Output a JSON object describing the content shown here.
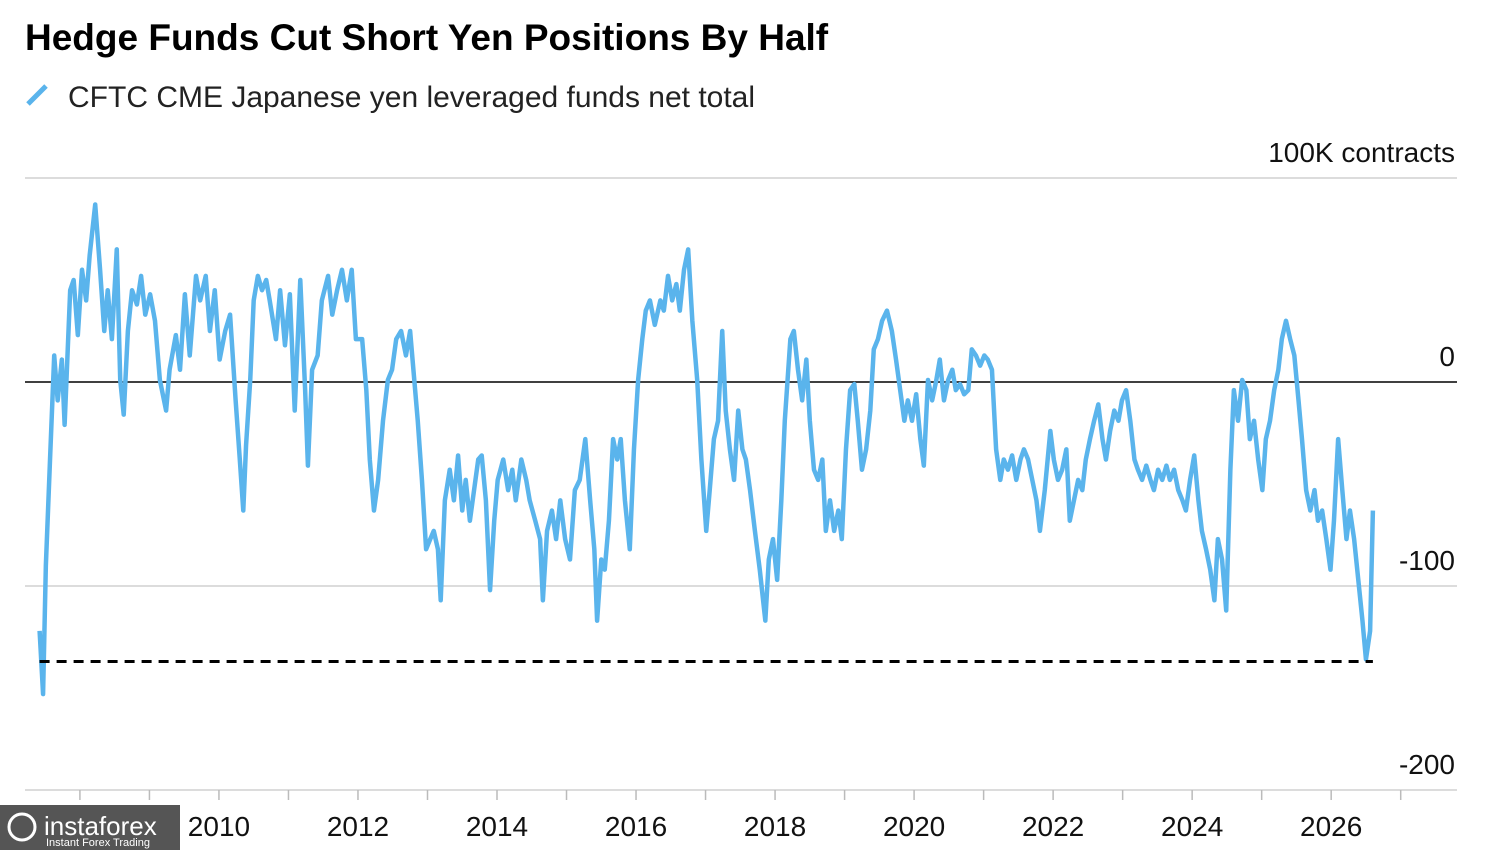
{
  "chart_data": {
    "type": "line",
    "title": "Hedge Funds Cut Short Yen Positions By Half",
    "x": [
      2007.42,
      2007.47,
      2007.51,
      2007.57,
      2007.63,
      2007.68,
      2007.74,
      2007.78,
      2007.86,
      2007.91,
      2007.97,
      2008.03,
      2008.09,
      2008.14,
      2008.22,
      2008.29,
      2008.35,
      2008.4,
      2008.46,
      2008.53,
      2008.58,
      2008.63,
      2008.69,
      2008.75,
      2008.82,
      2008.88,
      2008.94,
      2009.01,
      2009.08,
      2009.15,
      2009.24,
      2009.29,
      2009.38,
      2009.44,
      2009.51,
      2009.58,
      2009.67,
      2009.73,
      2009.81,
      2009.87,
      2009.94,
      2010.01,
      2010.09,
      2010.16,
      2010.24,
      2010.3,
      2010.35,
      2010.39,
      2010.45,
      2010.5,
      2010.56,
      2010.62,
      2010.68,
      2010.73,
      2010.82,
      2010.88,
      2010.95,
      2011.02,
      2011.09,
      2011.17,
      2011.24,
      2011.28,
      2011.34,
      2011.42,
      2011.48,
      2011.57,
      2011.63,
      2011.7,
      2011.77,
      2011.84,
      2011.91,
      2011.97,
      2012.06,
      2012.12,
      2012.17,
      2012.23,
      2012.29,
      2012.36,
      2012.43,
      2012.49,
      2012.55,
      2012.62,
      2012.69,
      2012.75,
      2012.81,
      2012.86,
      2012.92,
      2012.98,
      2013.04,
      2013.09,
      2013.15,
      2013.19,
      2013.25,
      2013.32,
      2013.38,
      2013.44,
      2013.5,
      2013.55,
      2013.61,
      2013.67,
      2013.73,
      2013.78,
      2013.84,
      2013.9,
      2013.96,
      2014.01,
      2014.09,
      2014.16,
      2014.22,
      2014.27,
      2014.35,
      2014.42,
      2014.47,
      2014.55,
      2014.62,
      2014.66,
      2014.72,
      2014.79,
      2014.85,
      2014.91,
      2014.98,
      2015.05,
      2015.12,
      2015.19,
      2015.27,
      2015.34,
      2015.4,
      2015.44,
      2015.5,
      2015.55,
      2015.61,
      2015.67,
      2015.73,
      2015.78,
      2015.84,
      2015.91,
      2015.97,
      2016.03,
      2016.09,
      2016.14,
      2016.2,
      2016.27,
      2016.35,
      2016.4,
      2016.46,
      2016.52,
      2016.58,
      2016.63,
      2016.69,
      2016.75,
      2016.81,
      2016.88,
      2016.94,
      2017.01,
      2017.06,
      2017.12,
      2017.18,
      2017.24,
      2017.29,
      2017.35,
      2017.41,
      2017.47,
      2017.53,
      2017.58,
      2017.64,
      2017.71,
      2017.78,
      2017.86,
      2017.91,
      2017.97,
      2018.03,
      2018.09,
      2018.14,
      2018.22,
      2018.27,
      2018.33,
      2018.39,
      2018.45,
      2018.5,
      2018.56,
      2018.62,
      2018.68,
      2018.73,
      2018.79,
      2018.85,
      2018.91,
      2018.96,
      2019.02,
      2019.08,
      2019.14,
      2019.19,
      2019.25,
      2019.31,
      2019.37,
      2019.42,
      2019.48,
      2019.54,
      2019.61,
      2019.68,
      2019.74,
      2019.8,
      2019.86,
      2019.91,
      2019.97,
      2020.03,
      2020.09,
      2020.14,
      2020.2,
      2020.26,
      2020.32,
      2020.37,
      2020.43,
      2020.49,
      2020.55,
      2020.6,
      2020.66,
      2020.72,
      2020.78,
      2020.83,
      2020.89,
      2020.95,
      2021.01,
      2021.06,
      2021.12,
      2021.18,
      2021.24,
      2021.29,
      2021.35,
      2021.41,
      2021.47,
      2021.53,
      2021.58,
      2021.64,
      2021.7,
      2021.76,
      2021.81,
      2021.88,
      2021.96,
      2022.01,
      2022.07,
      2022.13,
      2022.19,
      2022.24,
      2022.3,
      2022.36,
      2022.42,
      2022.47,
      2022.53,
      2022.59,
      2022.65,
      2022.71,
      2022.76,
      2022.82,
      2022.88,
      2022.94,
      2022.99,
      2023.05,
      2023.11,
      2023.17,
      2023.22,
      2023.28,
      2023.34,
      2023.4,
      2023.45,
      2023.51,
      2023.57,
      2023.63,
      2023.68,
      2023.74,
      2023.8,
      2023.86,
      2023.91,
      2023.97,
      2024.03,
      2024.09,
      2024.14,
      2024.2,
      2024.26,
      2024.32,
      2024.37,
      2024.43,
      2024.49,
      2024.55,
      2024.6,
      2024.66,
      2024.72,
      2024.78,
      2024.83,
      2024.89,
      2024.95,
      2025.01,
      2025.06,
      2025.12,
      2025.18,
      2025.24,
      2025.29,
      2025.35,
      2025.41,
      2025.47,
      2025.53,
      2025.58,
      2025.64,
      2025.7,
      2025.76,
      2025.81,
      2025.87,
      2025.93,
      2025.99,
      2026.04,
      2026.1,
      2026.16,
      2026.22,
      2026.27,
      2026.33,
      2026.39,
      2026.45,
      2026.5,
      2026.56,
      2026.6
    ],
    "series": [
      {
        "name": "CFTC CME Japanese yen leveraged funds net total",
        "color": "#5ab4ec",
        "values": [
          -122,
          -153,
          -90,
          -38,
          13,
          -9,
          11,
          -21,
          45,
          50,
          23,
          55,
          40,
          62,
          87,
          55,
          25,
          45,
          21,
          65,
          1,
          -16,
          25,
          45,
          38,
          52,
          33,
          43,
          30,
          1,
          -14,
          6,
          23,
          6,
          43,
          13,
          52,
          40,
          52,
          25,
          45,
          11,
          25,
          33,
          -9,
          -38,
          -63,
          -31,
          1,
          40,
          52,
          45,
          50,
          40,
          21,
          45,
          18,
          43,
          -14,
          50,
          -4,
          -41,
          6,
          13,
          40,
          52,
          33,
          45,
          55,
          40,
          55,
          21,
          21,
          -4,
          -38,
          -63,
          -48,
          -19,
          1,
          6,
          21,
          25,
          13,
          25,
          1,
          -19,
          -48,
          -82,
          -77,
          -73,
          -82,
          -107,
          -58,
          -43,
          -58,
          -36,
          -63,
          -48,
          -68,
          -53,
          -38,
          -36,
          -58,
          -102,
          -68,
          -48,
          -38,
          -53,
          -43,
          -58,
          -38,
          -48,
          -58,
          -68,
          -77,
          -107,
          -73,
          -63,
          -77,
          -58,
          -77,
          -87,
          -53,
          -48,
          -28,
          -58,
          -82,
          -117,
          -87,
          -92,
          -68,
          -28,
          -38,
          -28,
          -58,
          -82,
          -33,
          1,
          21,
          35,
          40,
          28,
          40,
          35,
          52,
          40,
          48,
          35,
          55,
          65,
          30,
          1,
          -38,
          -73,
          -53,
          -28,
          -19,
          25,
          -14,
          -33,
          -48,
          -14,
          -33,
          -38,
          -53,
          -73,
          -92,
          -117,
          -87,
          -77,
          -97,
          -58,
          -19,
          21,
          25,
          6,
          -9,
          11,
          -19,
          -43,
          -48,
          -38,
          -73,
          -58,
          -73,
          -63,
          -77,
          -33,
          -4,
          -1,
          -19,
          -43,
          -33,
          -14,
          16,
          21,
          30,
          35,
          25,
          11,
          -4,
          -19,
          -9,
          -19,
          -6,
          -28,
          -41,
          1,
          -9,
          1,
          11,
          -9,
          1,
          6,
          -4,
          -1,
          -6,
          -4,
          16,
          13,
          8,
          13,
          11,
          6,
          -33,
          -48,
          -38,
          -43,
          -36,
          -48,
          -38,
          -33,
          -38,
          -48,
          -58,
          -73,
          -53,
          -24,
          -38,
          -48,
          -43,
          -33,
          -68,
          -58,
          -48,
          -53,
          -38,
          -28,
          -19,
          -11,
          -28,
          -38,
          -24,
          -14,
          -19,
          -9,
          -4,
          -19,
          -38,
          -43,
          -48,
          -41,
          -48,
          -53,
          -43,
          -48,
          -41,
          -48,
          -43,
          -53,
          -58,
          -63,
          -48,
          -36,
          -58,
          -73,
          -82,
          -92,
          -107,
          -77,
          -87,
          -112,
          -43,
          -4,
          -19,
          1,
          -4,
          -28,
          -19,
          -38,
          -53,
          -28,
          -19,
          -4,
          6,
          21,
          30,
          21,
          13,
          -9,
          -28,
          -53,
          -63,
          -53,
          -68,
          -63,
          -77,
          -92,
          -68,
          -28,
          -53,
          -77,
          -63,
          -77,
          -97,
          -117,
          -136,
          -122,
          -63
        ]
      }
    ],
    "reference_line": -137,
    "xlim": [
      2007.21,
      2027.81
    ],
    "xticks": [
      2008,
      2010,
      2012,
      2014,
      2016,
      2018,
      2020,
      2022,
      2024,
      2026
    ],
    "xticks_minor": [
      2008,
      2009,
      2010,
      2011,
      2012,
      2013,
      2014,
      2015,
      2016,
      2017,
      2018,
      2019,
      2020,
      2021,
      2022,
      2023,
      2024,
      2025,
      2026,
      2027
    ],
    "ylim": [
      -200,
      100
    ],
    "yticks": [
      {
        "value": 100,
        "label": "100K contracts"
      },
      0,
      -100,
      -200
    ],
    "grid": true
  },
  "watermark": {
    "brand": "instaforex",
    "tagline": "Instant Forex Trading"
  }
}
